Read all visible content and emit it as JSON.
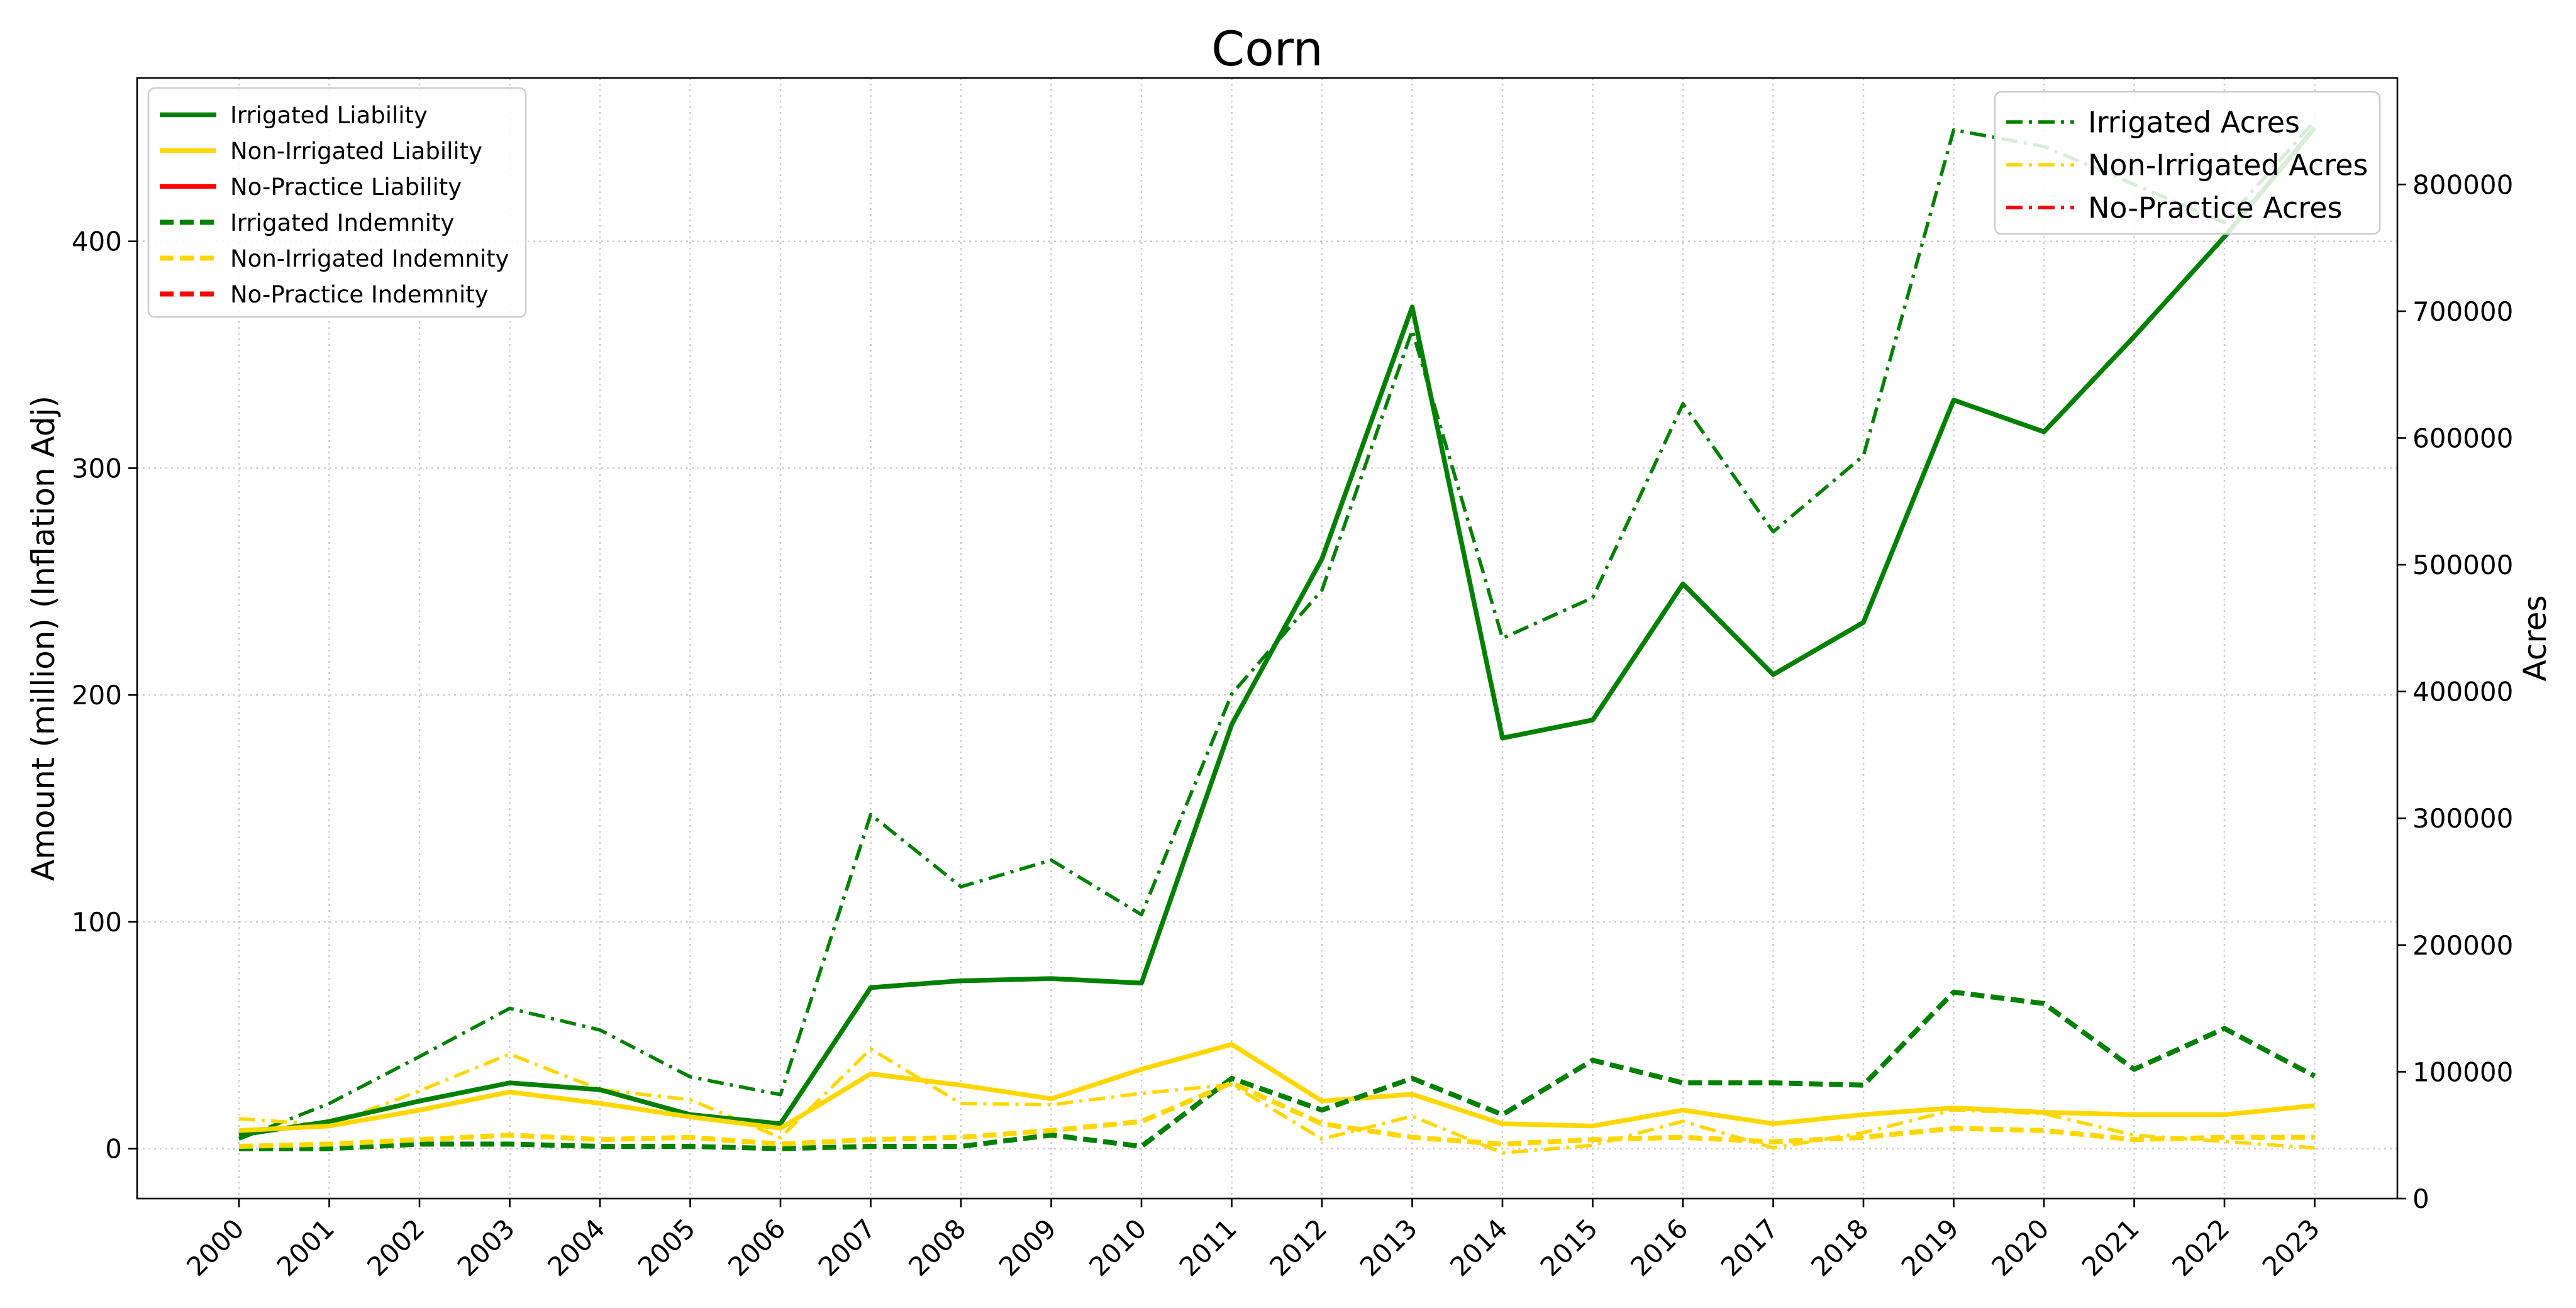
{
  "chart_data": {
    "type": "line",
    "title": "Corn",
    "xlabel": "",
    "ylabel": "Amount (million) (Inflation Adj)",
    "y2label": "Acres",
    "x": [
      "2000",
      "2001",
      "2002",
      "2003",
      "2004",
      "2005",
      "2006",
      "2007",
      "2008",
      "2009",
      "2010",
      "2011",
      "2012",
      "2013",
      "2014",
      "2015",
      "2016",
      "2017",
      "2018",
      "2019",
      "2020",
      "2021",
      "2022",
      "2023"
    ],
    "ylim": [
      -22,
      472
    ],
    "y2lim": [
      0,
      884000
    ],
    "yticks": [
      0,
      100,
      200,
      300,
      400
    ],
    "y2ticks": [
      0,
      100000,
      200000,
      300000,
      400000,
      500000,
      600000,
      700000,
      800000
    ],
    "grid": true,
    "legend_left_placement": "top-left",
    "legend_right_placement": "top-right",
    "series": [
      {
        "name": "Irrigated Liability",
        "axis": "left",
        "color": "#008000",
        "style": "solid",
        "values": [
          6,
          12,
          21,
          29,
          26,
          15,
          11,
          71,
          74,
          75,
          73,
          187,
          260,
          371,
          181,
          189,
          249,
          209,
          232,
          330,
          316,
          358,
          402,
          450
        ]
      },
      {
        "name": "Non-Irrigated Liability",
        "axis": "left",
        "color": "#FFD700",
        "style": "solid",
        "values": [
          8,
          10,
          17,
          25,
          20,
          14,
          9,
          33,
          28,
          22,
          35,
          46,
          21,
          24,
          11,
          10,
          17,
          11,
          15,
          18,
          16,
          15,
          15,
          19
        ]
      },
      {
        "name": "No-Practice Liability",
        "axis": "left",
        "color": "#FF0000",
        "style": "solid",
        "values": [
          null,
          null,
          null,
          null,
          null,
          null,
          null,
          null,
          null,
          null,
          null,
          null,
          null,
          null,
          null,
          null,
          null,
          null,
          null,
          null,
          null,
          null,
          null,
          null
        ]
      },
      {
        "name": "Irrigated Indemnity",
        "axis": "left",
        "color": "#008000",
        "style": "dashed",
        "values": [
          0,
          0,
          2,
          2,
          1,
          1,
          0,
          1,
          1,
          6,
          1,
          31,
          17,
          31,
          15,
          39,
          29,
          29,
          28,
          69,
          64,
          35,
          53,
          32
        ]
      },
      {
        "name": "Non-Irrigated Indemnity",
        "axis": "left",
        "color": "#FFD700",
        "style": "dashed",
        "values": [
          1,
          2,
          4,
          6,
          4,
          5,
          2,
          4,
          5,
          8,
          12,
          29,
          11,
          5,
          2,
          4,
          5,
          3,
          5,
          9,
          8,
          4,
          5,
          5
        ]
      },
      {
        "name": "No-Practice Indemnity",
        "axis": "left",
        "color": "#FF0000",
        "style": "dashed",
        "values": [
          null,
          null,
          null,
          null,
          null,
          null,
          null,
          null,
          null,
          null,
          null,
          null,
          null,
          null,
          null,
          null,
          null,
          null,
          null,
          null,
          null,
          null,
          null,
          null
        ]
      },
      {
        "name": "Irrigated Acres",
        "axis": "right",
        "color": "#008000",
        "style": "dashdot",
        "values": [
          47000,
          75000,
          112000,
          150000,
          133000,
          96000,
          82000,
          303000,
          246000,
          267000,
          224000,
          398000,
          480000,
          685000,
          442000,
          474000,
          627000,
          526000,
          586000,
          843000,
          830000,
          800000,
          770000,
          850000
        ]
      },
      {
        "name": "Non-Irrigated Acres",
        "axis": "right",
        "color": "#FFD700",
        "style": "dashdot",
        "values": [
          63000,
          58000,
          85000,
          114000,
          86000,
          78000,
          48000,
          118000,
          75000,
          74000,
          83000,
          90000,
          47000,
          65000,
          36000,
          42000,
          61000,
          40000,
          52000,
          70000,
          67000,
          50000,
          45000,
          40000
        ]
      },
      {
        "name": "No-Practice Acres",
        "axis": "right",
        "color": "#FF0000",
        "style": "dashdot",
        "values": [
          null,
          null,
          null,
          null,
          null,
          null,
          null,
          null,
          null,
          null,
          null,
          null,
          null,
          null,
          null,
          null,
          null,
          null,
          null,
          null,
          null,
          null,
          null,
          null
        ]
      }
    ]
  }
}
